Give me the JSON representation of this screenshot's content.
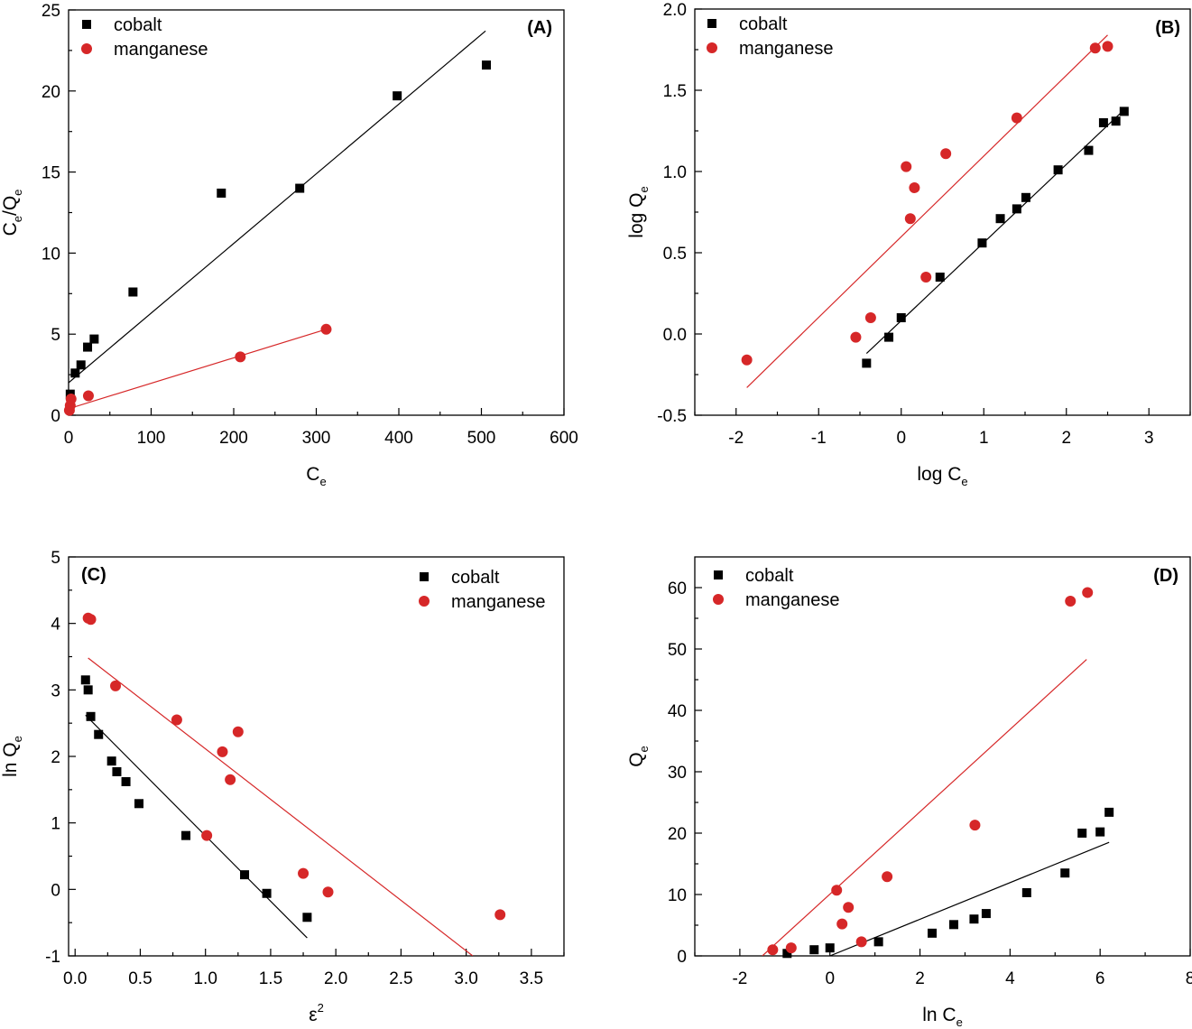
{
  "colors": {
    "cobalt": "#000000",
    "manganese": "#d62728"
  },
  "chart_data": [
    {
      "id": "A",
      "type": "scatter",
      "tag": "(A)",
      "title": "",
      "xlabel": "C",
      "xlabel_sub": "e",
      "ylabel_parts": [
        "C",
        "e",
        "/Q",
        "e"
      ],
      "xlim": [
        0,
        600
      ],
      "ylim": [
        0,
        25
      ],
      "xticks": [
        0,
        100,
        200,
        300,
        400,
        500,
        600
      ],
      "yticks": [
        0,
        5,
        10,
        15,
        20,
        25
      ],
      "legend": "top-left",
      "series": [
        {
          "name": "cobalt",
          "marker": "square",
          "color": "#000000",
          "x": [
            2,
            8,
            15,
            23,
            31,
            78,
            185,
            280,
            398,
            506
          ],
          "y": [
            1.3,
            2.6,
            3.1,
            4.2,
            4.7,
            7.6,
            13.7,
            14.0,
            19.7,
            21.6
          ],
          "fit": [
            [
              0,
              2.0
            ],
            [
              505,
              23.7
            ]
          ]
        },
        {
          "name": "manganese",
          "marker": "circle",
          "color": "#d62728",
          "x": [
            1,
            2,
            3,
            24,
            208,
            312
          ],
          "y": [
            0.3,
            0.6,
            1.0,
            1.2,
            3.6,
            5.3
          ],
          "fit": [
            [
              0,
              0.4
            ],
            [
              312,
              5.3
            ]
          ]
        }
      ]
    },
    {
      "id": "B",
      "type": "scatter",
      "tag": "(B)",
      "title": "",
      "xlabel": "log C",
      "xlabel_sub": "e",
      "ylabel_parts": [
        "log Q",
        "e"
      ],
      "xlim": [
        -2.5,
        3.5
      ],
      "ylim": [
        -0.5,
        2.0
      ],
      "xticks": [
        -2,
        -1,
        0,
        1,
        2,
        3
      ],
      "yticks": [
        -0.5,
        0.0,
        0.5,
        1.0,
        1.5,
        2.0
      ],
      "legend": "top-left",
      "series": [
        {
          "name": "cobalt",
          "marker": "square",
          "color": "#000000",
          "x": [
            -0.42,
            -0.15,
            0.0,
            0.47,
            0.98,
            1.2,
            1.4,
            1.51,
            1.9,
            2.27,
            2.45,
            2.6,
            2.7
          ],
          "y": [
            -0.18,
            -0.02,
            0.1,
            0.35,
            0.56,
            0.71,
            0.77,
            0.84,
            1.01,
            1.13,
            1.3,
            1.31,
            1.37
          ],
          "fit": [
            [
              -0.42,
              -0.12
            ],
            [
              2.7,
              1.38
            ]
          ]
        },
        {
          "name": "manganese",
          "marker": "circle",
          "color": "#d62728",
          "x": [
            -1.87,
            -0.55,
            -0.37,
            0.06,
            0.11,
            0.16,
            0.3,
            0.54,
            1.4,
            2.35,
            2.5
          ],
          "y": [
            -0.16,
            -0.02,
            0.1,
            1.03,
            0.71,
            0.9,
            0.35,
            1.11,
            1.33,
            1.76,
            1.77
          ],
          "fit": [
            [
              -1.87,
              -0.33
            ],
            [
              2.5,
              1.84
            ]
          ]
        }
      ]
    },
    {
      "id": "C",
      "type": "scatter",
      "tag": "(C)",
      "title": "",
      "xlabel": "ε",
      "xlabel_sup": "2",
      "ylabel_parts": [
        "ln Q",
        "e"
      ],
      "xlim": [
        -0.05,
        3.75
      ],
      "ylim": [
        -1,
        5
      ],
      "xticks": [
        0.0,
        0.5,
        1.0,
        1.5,
        2.0,
        2.5,
        3.0,
        3.5
      ],
      "yticks": [
        -1,
        0,
        1,
        2,
        3,
        4,
        5
      ],
      "legend": "top-right",
      "series": [
        {
          "name": "cobalt",
          "marker": "square",
          "color": "#000000",
          "x": [
            0.08,
            0.1,
            0.12,
            0.18,
            0.28,
            0.32,
            0.39,
            0.49,
            0.85,
            1.3,
            1.47,
            1.78
          ],
          "y": [
            3.15,
            3.0,
            2.6,
            2.33,
            1.93,
            1.77,
            1.62,
            1.29,
            0.81,
            0.22,
            -0.06,
            -0.42
          ],
          "fit": [
            [
              0.08,
              2.62
            ],
            [
              1.78,
              -0.73
            ]
          ]
        },
        {
          "name": "manganese",
          "marker": "circle",
          "color": "#d62728",
          "x": [
            0.1,
            0.12,
            0.31,
            0.78,
            1.01,
            1.13,
            1.19,
            1.25,
            1.75,
            1.94,
            3.26
          ],
          "y": [
            4.08,
            4.06,
            3.06,
            2.55,
            0.81,
            2.07,
            1.65,
            2.37,
            0.24,
            -0.04,
            -0.38
          ],
          "fit": [
            [
              0.1,
              3.48
            ],
            [
              3.05,
              -1.0
            ]
          ]
        }
      ]
    },
    {
      "id": "D",
      "type": "scatter",
      "tag": "(D)",
      "title": "",
      "xlabel": "ln C",
      "xlabel_sub": "e",
      "ylabel_parts": [
        "Q",
        "e"
      ],
      "xlim": [
        -3,
        8
      ],
      "ylim": [
        0,
        65
      ],
      "xticks": [
        -2,
        0,
        2,
        4,
        6,
        8
      ],
      "yticks": [
        0,
        10,
        20,
        30,
        40,
        50,
        60
      ],
      "legend": "top-left",
      "series": [
        {
          "name": "cobalt",
          "marker": "square",
          "color": "#000000",
          "x": [
            -0.95,
            -0.35,
            0.0,
            1.08,
            2.27,
            2.75,
            3.2,
            3.47,
            4.37,
            5.22,
            5.6,
            6.0,
            6.2
          ],
          "y": [
            0.4,
            1.0,
            1.3,
            2.3,
            3.7,
            5.1,
            6.0,
            6.9,
            10.3,
            13.5,
            20.0,
            20.2,
            23.4
          ],
          "fit": [
            [
              0.0,
              0.0
            ],
            [
              6.2,
              18.5
            ]
          ]
        },
        {
          "name": "manganese",
          "marker": "circle",
          "color": "#d62728",
          "x": [
            -1.27,
            -0.86,
            0.15,
            0.27,
            0.41,
            0.7,
            1.27,
            3.22,
            5.34,
            5.72
          ],
          "y": [
            1.0,
            1.3,
            10.7,
            5.2,
            7.9,
            2.3,
            12.9,
            21.3,
            57.8,
            59.2
          ],
          "fit": [
            [
              -1.5,
              0.0
            ],
            [
              5.7,
              48.3
            ]
          ]
        }
      ]
    }
  ]
}
